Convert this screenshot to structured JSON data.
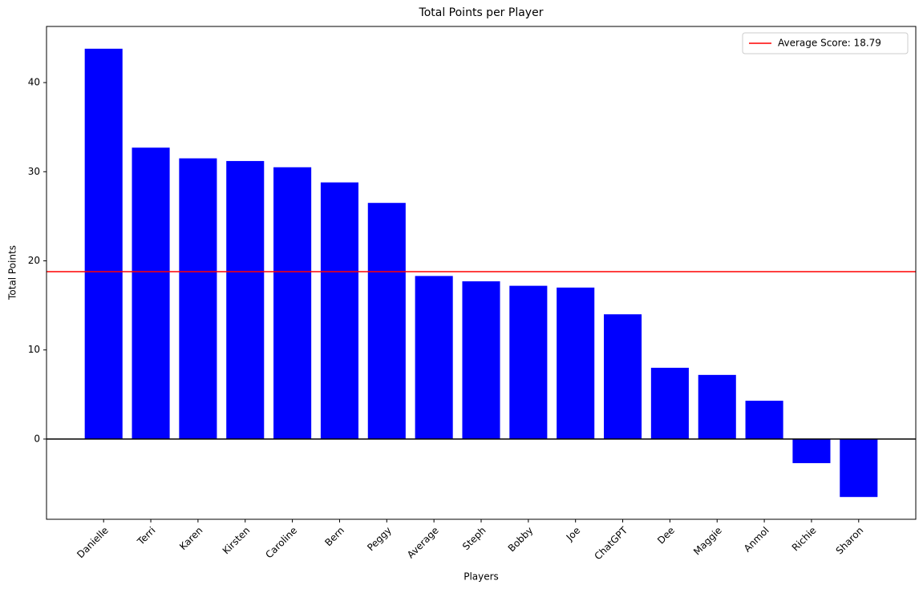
{
  "chart_data": {
    "type": "bar",
    "title": "Total Points per Player",
    "xlabel": "Players",
    "ylabel": "Total Points",
    "categories": [
      "Danielle",
      "Terri",
      "Karen",
      "Kirsten",
      "Caroline",
      "Bern",
      "Peggy",
      "Average",
      "Steph",
      "Bobby",
      "Joe",
      "ChatGPT",
      "Dee",
      "Maggie",
      "Anmol",
      "Richie",
      "Sharon"
    ],
    "values": [
      43.8,
      32.7,
      31.5,
      31.2,
      30.5,
      28.8,
      26.5,
      18.3,
      17.7,
      17.2,
      17.0,
      14.0,
      8.0,
      7.2,
      4.3,
      -2.7,
      -6.5
    ],
    "color": "#0000ff",
    "ylim": [
      -9.0,
      46.3
    ],
    "yticks": [
      0,
      10,
      20,
      30,
      40
    ],
    "reference_line": {
      "value": 0,
      "color": "#000000"
    },
    "average_line": {
      "value": 18.79,
      "label": "Average Score: 18.79",
      "color": "#ff0000"
    },
    "legend_position": "upper right"
  }
}
